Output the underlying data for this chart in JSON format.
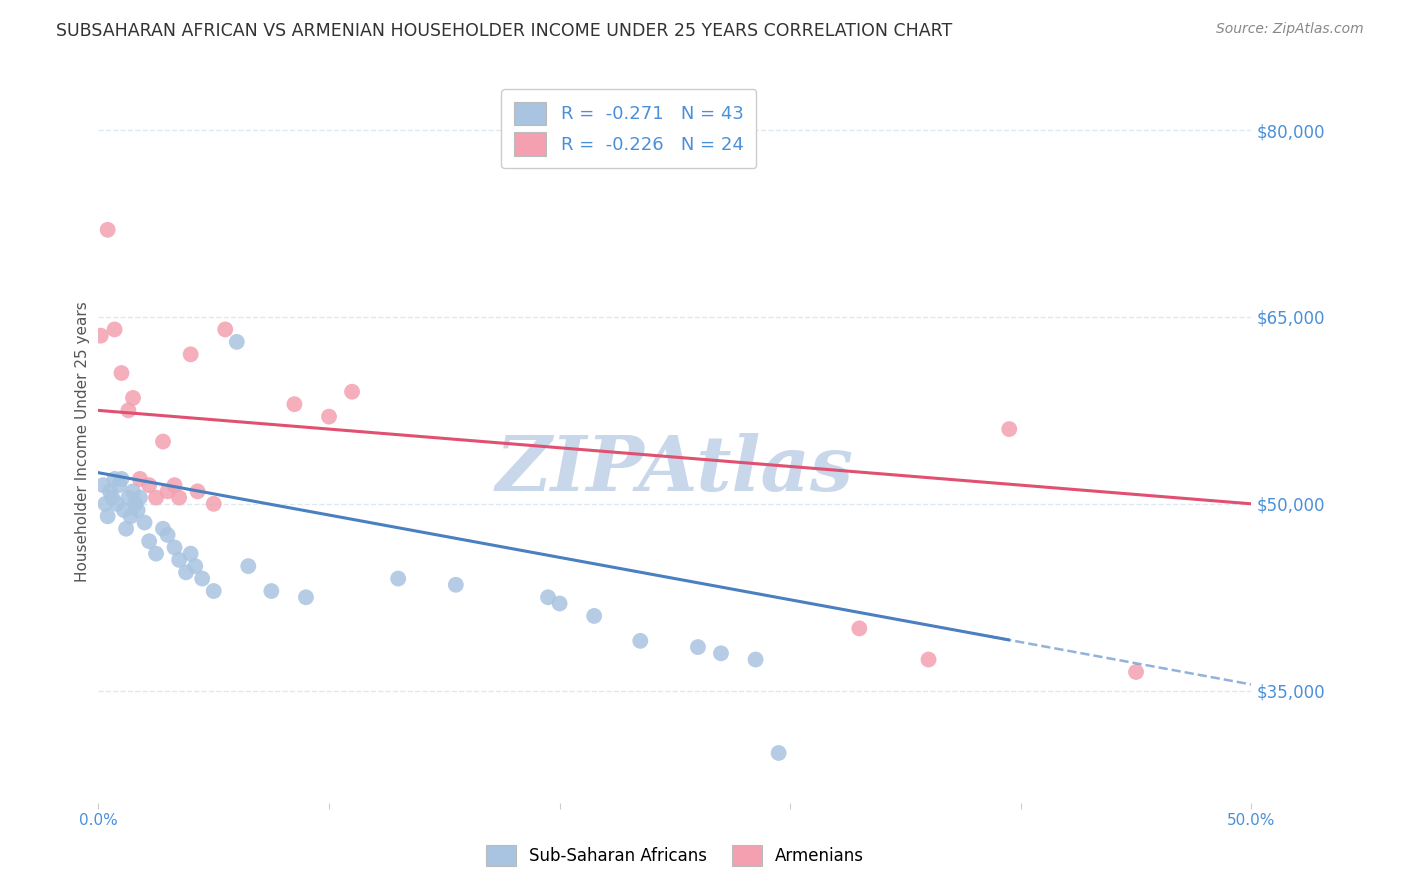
{
  "title": "SUBSAHARAN AFRICAN VS ARMENIAN HOUSEHOLDER INCOME UNDER 25 YEARS CORRELATION CHART",
  "source": "Source: ZipAtlas.com",
  "ylabel": "Householder Income Under 25 years",
  "xlim": [
    0.0,
    0.5
  ],
  "ylim": [
    26000,
    84000
  ],
  "yticks": [
    35000,
    50000,
    65000,
    80000
  ],
  "ytick_labels": [
    "$35,000",
    "$50,000",
    "$65,000",
    "$80,000"
  ],
  "xticks": [
    0.0,
    0.1,
    0.2,
    0.3,
    0.4,
    0.5
  ],
  "xtick_labels": [
    "0.0%",
    "",
    "",
    "",
    "",
    "50.0%"
  ],
  "blue_R": -0.271,
  "blue_N": 43,
  "pink_R": -0.226,
  "pink_N": 24,
  "blue_color": "#a8c4e0",
  "pink_color": "#f4a0b0",
  "blue_line_color": "#4a7fc0",
  "pink_line_color": "#e05070",
  "watermark": "ZIPAtlas",
  "watermark_color": "#c8d8ea",
  "blue_points_x": [
    0.002,
    0.003,
    0.004,
    0.005,
    0.006,
    0.007,
    0.008,
    0.009,
    0.01,
    0.011,
    0.012,
    0.013,
    0.014,
    0.015,
    0.016,
    0.017,
    0.018,
    0.02,
    0.022,
    0.025,
    0.028,
    0.03,
    0.033,
    0.035,
    0.038,
    0.04,
    0.042,
    0.045,
    0.05,
    0.06,
    0.065,
    0.075,
    0.09,
    0.13,
    0.155,
    0.195,
    0.2,
    0.215,
    0.235,
    0.26,
    0.27,
    0.285,
    0.295
  ],
  "blue_points_y": [
    51500,
    50000,
    49000,
    51000,
    50500,
    52000,
    50000,
    51500,
    52000,
    49500,
    48000,
    50500,
    49000,
    51000,
    50000,
    49500,
    50500,
    48500,
    47000,
    46000,
    48000,
    47500,
    46500,
    45500,
    44500,
    46000,
    45000,
    44000,
    43000,
    63000,
    45000,
    43000,
    42500,
    44000,
    43500,
    42500,
    42000,
    41000,
    39000,
    38500,
    38000,
    37500,
    30000
  ],
  "pink_points_x": [
    0.001,
    0.004,
    0.007,
    0.01,
    0.013,
    0.015,
    0.018,
    0.022,
    0.025,
    0.028,
    0.03,
    0.033,
    0.035,
    0.04,
    0.043,
    0.05,
    0.055,
    0.085,
    0.1,
    0.11,
    0.33,
    0.36,
    0.395,
    0.45
  ],
  "pink_points_y": [
    63500,
    72000,
    64000,
    60500,
    57500,
    58500,
    52000,
    51500,
    50500,
    55000,
    51000,
    51500,
    50500,
    62000,
    51000,
    50000,
    64000,
    58000,
    57000,
    59000,
    40000,
    37500,
    56000,
    36500
  ],
  "background_color": "#ffffff",
  "plot_bg_color": "#ffffff",
  "grid_color": "#dde8f0",
  "title_color": "#333333",
  "axis_label_color": "#555555",
  "tick_label_color": "#4a90d9",
  "source_color": "#888888"
}
